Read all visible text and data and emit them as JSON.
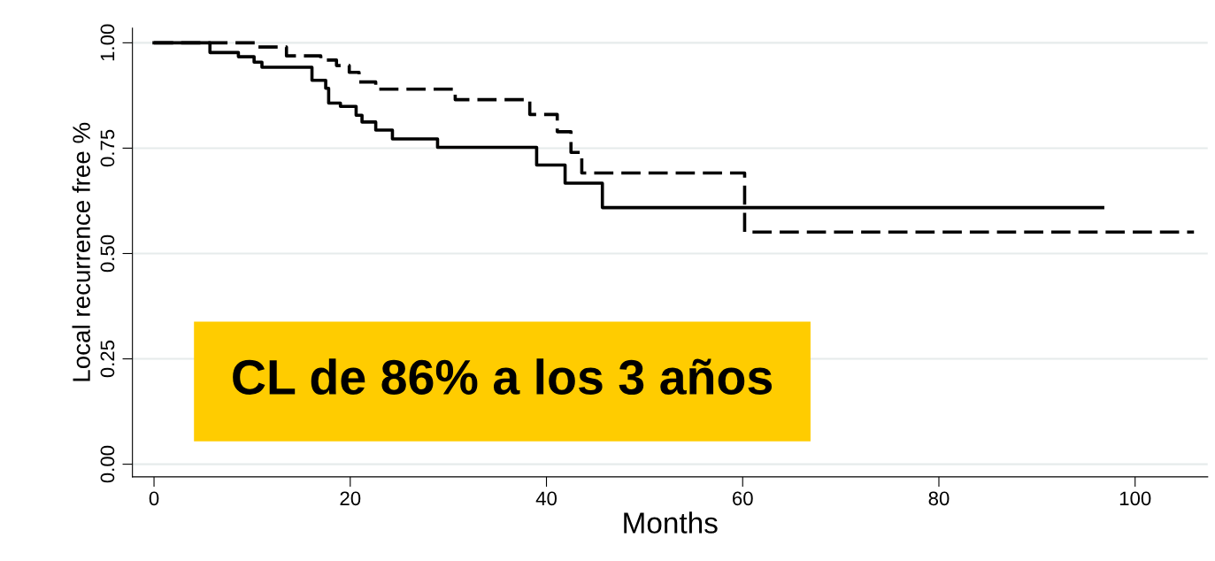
{
  "chart_data": {
    "type": "step",
    "xlabel": "Months",
    "ylabel": "Local recurrence free %",
    "xlim": [
      -2.2,
      107.4
    ],
    "ylim": [
      -0.03,
      1.035
    ],
    "xticks": [
      0,
      20,
      40,
      60,
      80,
      100
    ],
    "yticks": [
      {
        "value": 0,
        "label": "0.00"
      },
      {
        "value": 0.25,
        "label": "0.25"
      },
      {
        "value": 0.5,
        "label": "0.50"
      },
      {
        "value": 0.75,
        "label": "0.75"
      },
      {
        "value": 1,
        "label": "1.00"
      }
    ],
    "grid": "y",
    "marker": "none",
    "series": [
      {
        "color": "#000000",
        "line_style": "solid",
        "x": [
          0,
          5.7,
          8.6,
          10.2,
          11.0,
          16.1,
          17.5,
          17.8,
          19.0,
          20.6,
          21.2,
          22.6,
          24.3,
          28.9,
          39.0,
          41.9,
          45.7,
          96.7
        ],
        "values": [
          1.0,
          0.977,
          0.967,
          0.954,
          0.942,
          0.911,
          0.892,
          0.857,
          0.849,
          0.828,
          0.812,
          0.793,
          0.772,
          0.752,
          0.71,
          0.667,
          0.609,
          0.609
        ]
      },
      {
        "color": "#000000",
        "line_style": "dashed",
        "x": [
          0,
          10.6,
          13.5,
          17.0,
          18.6,
          19.9,
          20.9,
          22.6,
          30.7,
          38.3,
          41.1,
          42.5,
          43.6,
          60.2,
          106.0
        ],
        "values": [
          1.0,
          0.99,
          0.969,
          0.959,
          0.946,
          0.93,
          0.907,
          0.89,
          0.865,
          0.83,
          0.789,
          0.74,
          0.691,
          0.551,
          0.551
        ]
      }
    ],
    "annotations": [
      "CL de 86% a los 3 años"
    ]
  }
}
